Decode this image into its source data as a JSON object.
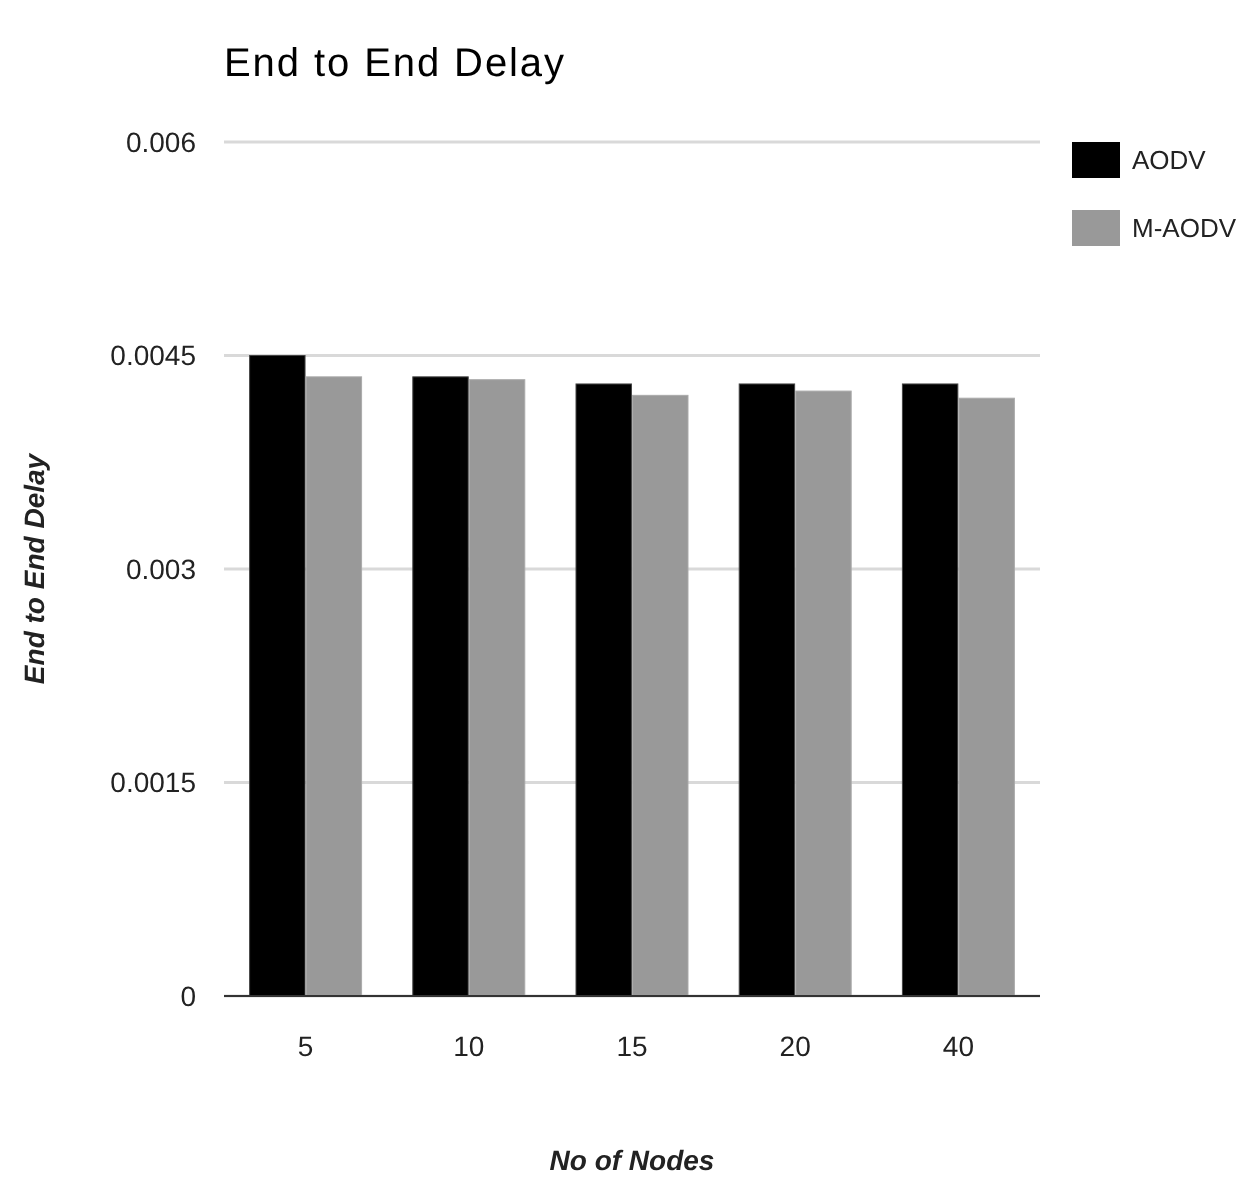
{
  "chart_data": {
    "type": "bar",
    "title": "End to End Delay",
    "xlabel": "No of Nodes",
    "ylabel": "End to End Delay",
    "categories": [
      "5",
      "10",
      "15",
      "20",
      "40"
    ],
    "series": [
      {
        "name": "AODV",
        "color": "#000000",
        "values": [
          0.0045,
          0.00435,
          0.0043,
          0.0043,
          0.0043
        ]
      },
      {
        "name": "M-AODV",
        "color": "#999999",
        "values": [
          0.00435,
          0.00433,
          0.00422,
          0.00425,
          0.0042
        ]
      }
    ],
    "ylim": [
      0,
      0.006
    ],
    "yticks": [
      0,
      0.0015,
      0.003,
      0.0045,
      0.006
    ],
    "grid": "y",
    "legend": "top right"
  }
}
